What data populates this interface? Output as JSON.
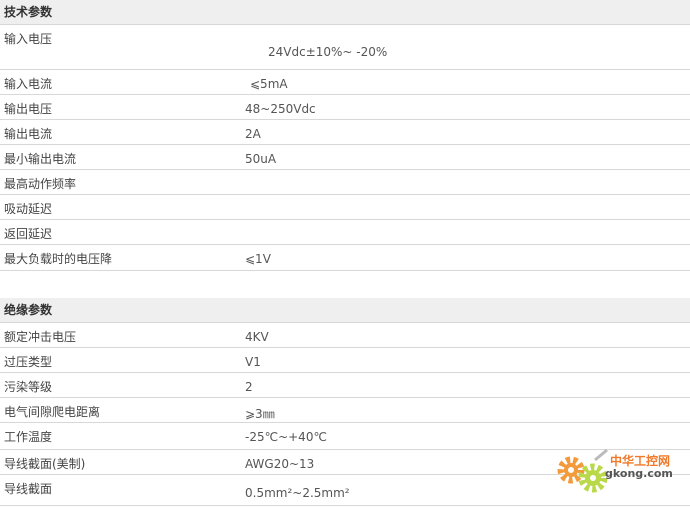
{
  "sections": [
    {
      "title": "技术参数",
      "rows": [
        {
          "label": "输入电压",
          "value": "24Vdc±10%~ -20%"
        },
        {
          "label": "输入电流",
          "value": "⩽5mA"
        },
        {
          "label": "输出电压",
          "value": "48~250Vdc"
        },
        {
          "label": "输出电流",
          "value": "2A"
        },
        {
          "label": "最小输出电流",
          "value": "50uA"
        },
        {
          "label": "最高动作频率",
          "value": ""
        },
        {
          "label": "吸动延迟",
          "value": ""
        },
        {
          "label": "返回延迟",
          "value": ""
        },
        {
          "label": "最大负载时的电压降",
          "value": "⩽1V"
        }
      ]
    },
    {
      "title": "绝缘参数",
      "rows": [
        {
          "label": "额定冲击电压",
          "value": "4KV"
        },
        {
          "label": "过压类型",
          "value": "V1"
        },
        {
          "label": "污染等级",
          "value": "2"
        },
        {
          "label": "电气间隙爬电距离",
          "value": "⩾3㎜"
        },
        {
          "label": "工作温度",
          "value": "-25℃~+40℃"
        },
        {
          "label": "导线截面(美制)",
          "value": "AWG20~13"
        },
        {
          "label": "导线截面",
          "value": "0.5mm²~2.5mm²"
        }
      ]
    }
  ],
  "watermark": {
    "cn": "中华工控网",
    "url": "gkong.com"
  }
}
